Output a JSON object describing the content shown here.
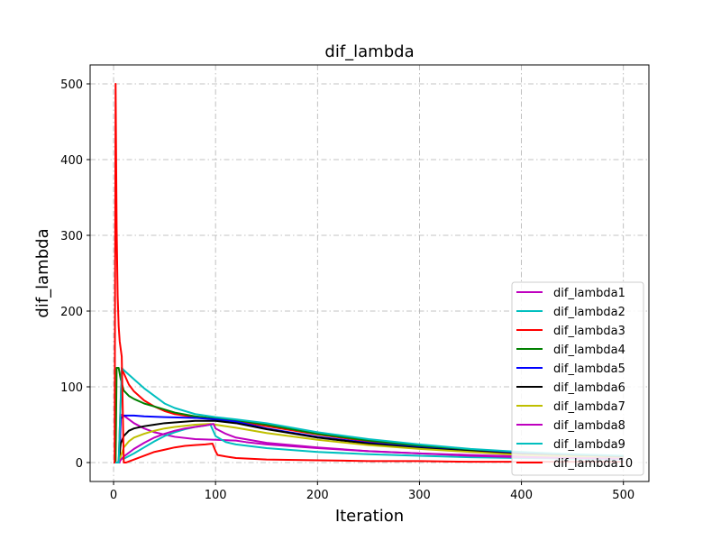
{
  "chart_data": {
    "type": "line",
    "title": "dif_lambda",
    "xlabel": "Iteration",
    "ylabel": "dif_lambda",
    "xlim": [
      -23,
      525
    ],
    "ylim": [
      -25,
      525
    ],
    "xticks": [
      0,
      100,
      200,
      300,
      400,
      500
    ],
    "yticks": [
      0,
      100,
      200,
      300,
      400,
      500
    ],
    "grid": true,
    "grid_style": "dashdot",
    "legend_position": "lower right",
    "series": [
      {
        "name": "dif_lambda1",
        "color": "#bf00bf",
        "points": [
          [
            1,
            0
          ],
          [
            2,
            0
          ],
          [
            3,
            0
          ],
          [
            4,
            0
          ],
          [
            5,
            0
          ],
          [
            6,
            0
          ],
          [
            7,
            60
          ],
          [
            8,
            63
          ],
          [
            10,
            62
          ],
          [
            20,
            52
          ],
          [
            30,
            45
          ],
          [
            40,
            40
          ],
          [
            50,
            37
          ],
          [
            60,
            34
          ],
          [
            80,
            31
          ],
          [
            100,
            30
          ],
          [
            120,
            29
          ],
          [
            130,
            27
          ],
          [
            150,
            24
          ],
          [
            200,
            19
          ],
          [
            250,
            15
          ],
          [
            300,
            12
          ],
          [
            350,
            10
          ],
          [
            400,
            8
          ],
          [
            450,
            7
          ],
          [
            500,
            6
          ]
        ]
      },
      {
        "name": "dif_lambda2",
        "color": "#00bfbf",
        "points": [
          [
            1,
            0
          ],
          [
            2,
            0
          ],
          [
            3,
            0
          ],
          [
            4,
            0
          ],
          [
            5,
            2
          ],
          [
            8,
            5
          ],
          [
            10,
            5
          ],
          [
            20,
            12
          ],
          [
            30,
            20
          ],
          [
            40,
            28
          ],
          [
            50,
            35
          ],
          [
            60,
            40
          ],
          [
            70,
            44
          ],
          [
            80,
            47
          ],
          [
            90,
            49
          ],
          [
            95,
            50
          ],
          [
            100,
            35
          ],
          [
            110,
            27
          ],
          [
            120,
            24
          ],
          [
            150,
            19
          ],
          [
            200,
            14
          ],
          [
            250,
            11
          ],
          [
            300,
            9
          ],
          [
            350,
            7
          ],
          [
            400,
            6
          ],
          [
            450,
            5
          ],
          [
            500,
            4
          ]
        ]
      },
      {
        "name": "dif_lambda3",
        "color": "#ff0000",
        "points": [
          [
            1,
            0
          ],
          [
            2,
            0
          ],
          [
            3,
            0
          ],
          [
            5,
            0
          ],
          [
            8,
            125
          ],
          [
            10,
            118
          ],
          [
            15,
            103
          ],
          [
            20,
            94
          ],
          [
            30,
            82
          ],
          [
            40,
            74
          ],
          [
            50,
            68
          ],
          [
            60,
            64
          ],
          [
            80,
            60
          ],
          [
            100,
            57
          ],
          [
            120,
            55
          ],
          [
            150,
            48
          ],
          [
            200,
            37
          ],
          [
            250,
            28
          ],
          [
            300,
            22
          ],
          [
            350,
            17
          ],
          [
            400,
            13
          ],
          [
            450,
            10
          ],
          [
            500,
            8
          ]
        ]
      },
      {
        "name": "dif_lambda4",
        "color": "#008000",
        "points": [
          [
            1,
            0
          ],
          [
            2,
            0
          ],
          [
            3,
            125
          ],
          [
            5,
            125
          ],
          [
            7,
            110
          ],
          [
            10,
            95
          ],
          [
            15,
            88
          ],
          [
            20,
            84
          ],
          [
            30,
            78
          ],
          [
            40,
            74
          ],
          [
            50,
            70
          ],
          [
            60,
            66
          ],
          [
            80,
            61
          ],
          [
            100,
            58
          ],
          [
            120,
            56
          ],
          [
            150,
            50
          ],
          [
            200,
            38
          ],
          [
            250,
            29
          ],
          [
            300,
            22
          ],
          [
            350,
            17
          ],
          [
            400,
            13
          ],
          [
            450,
            10
          ],
          [
            500,
            8
          ]
        ]
      },
      {
        "name": "dif_lambda5",
        "color": "#0000ff",
        "points": [
          [
            1,
            0
          ],
          [
            2,
            0
          ],
          [
            3,
            0
          ],
          [
            5,
            0
          ],
          [
            7,
            58
          ],
          [
            10,
            62
          ],
          [
            20,
            62
          ],
          [
            30,
            61
          ],
          [
            50,
            60
          ],
          [
            80,
            59
          ],
          [
            100,
            57
          ],
          [
            120,
            54
          ],
          [
            150,
            45
          ],
          [
            200,
            34
          ],
          [
            250,
            26
          ],
          [
            300,
            20
          ],
          [
            350,
            15
          ],
          [
            400,
            12
          ],
          [
            450,
            9
          ],
          [
            500,
            7
          ]
        ]
      },
      {
        "name": "dif_lambda6",
        "color": "#000000",
        "points": [
          [
            1,
            0
          ],
          [
            2,
            0
          ],
          [
            3,
            0
          ],
          [
            5,
            0
          ],
          [
            7,
            25
          ],
          [
            10,
            35
          ],
          [
            15,
            42
          ],
          [
            20,
            45
          ],
          [
            30,
            48
          ],
          [
            40,
            50
          ],
          [
            50,
            52
          ],
          [
            60,
            53
          ],
          [
            80,
            55
          ],
          [
            100,
            55
          ],
          [
            120,
            52
          ],
          [
            150,
            44
          ],
          [
            200,
            33
          ],
          [
            250,
            25
          ],
          [
            300,
            19
          ],
          [
            350,
            15
          ],
          [
            400,
            11
          ],
          [
            450,
            9
          ],
          [
            500,
            7
          ]
        ]
      },
      {
        "name": "dif_lambda7",
        "color": "#bfbf00",
        "points": [
          [
            1,
            0
          ],
          [
            2,
            0
          ],
          [
            3,
            0
          ],
          [
            5,
            0
          ],
          [
            8,
            12
          ],
          [
            10,
            20
          ],
          [
            15,
            28
          ],
          [
            20,
            33
          ],
          [
            30,
            38
          ],
          [
            40,
            42
          ],
          [
            50,
            45
          ],
          [
            60,
            47
          ],
          [
            80,
            50
          ],
          [
            95,
            51
          ],
          [
            100,
            50
          ],
          [
            120,
            46
          ],
          [
            150,
            39
          ],
          [
            200,
            30
          ],
          [
            250,
            23
          ],
          [
            300,
            18
          ],
          [
            350,
            14
          ],
          [
            400,
            10
          ],
          [
            450,
            8
          ],
          [
            500,
            6
          ]
        ]
      },
      {
        "name": "dif_lambda8",
        "color": "#bf00bf",
        "points": [
          [
            1,
            0
          ],
          [
            2,
            0
          ],
          [
            3,
            0
          ],
          [
            5,
            0
          ],
          [
            8,
            5
          ],
          [
            10,
            8
          ],
          [
            20,
            18
          ],
          [
            30,
            26
          ],
          [
            40,
            33
          ],
          [
            50,
            38
          ],
          [
            60,
            42
          ],
          [
            70,
            45
          ],
          [
            80,
            47
          ],
          [
            90,
            49
          ],
          [
            98,
            51
          ],
          [
            100,
            45
          ],
          [
            110,
            38
          ],
          [
            120,
            33
          ],
          [
            150,
            26
          ],
          [
            200,
            20
          ],
          [
            250,
            15
          ],
          [
            300,
            12
          ],
          [
            350,
            9
          ],
          [
            400,
            7
          ],
          [
            450,
            6
          ],
          [
            500,
            5
          ]
        ]
      },
      {
        "name": "dif_lambda9",
        "color": "#00bfbf",
        "points": [
          [
            1,
            0
          ],
          [
            2,
            0
          ],
          [
            3,
            0
          ],
          [
            5,
            0
          ],
          [
            8,
            125
          ],
          [
            10,
            122
          ],
          [
            20,
            110
          ],
          [
            30,
            98
          ],
          [
            40,
            88
          ],
          [
            50,
            78
          ],
          [
            60,
            72
          ],
          [
            80,
            64
          ],
          [
            100,
            60
          ],
          [
            120,
            57
          ],
          [
            150,
            52
          ],
          [
            200,
            40
          ],
          [
            250,
            31
          ],
          [
            300,
            24
          ],
          [
            350,
            18
          ],
          [
            400,
            14
          ],
          [
            450,
            11
          ],
          [
            500,
            9
          ]
        ]
      },
      {
        "name": "dif_lambda10",
        "color": "#ff0000",
        "points": [
          [
            0,
            0
          ],
          [
            1,
            0
          ],
          [
            2,
            500
          ],
          [
            3,
            310
          ],
          [
            4,
            220
          ],
          [
            5,
            180
          ],
          [
            6,
            160
          ],
          [
            8,
            140
          ],
          [
            10,
            0
          ],
          [
            12,
            0
          ],
          [
            20,
            4
          ],
          [
            30,
            9
          ],
          [
            40,
            14
          ],
          [
            50,
            17
          ],
          [
            60,
            20
          ],
          [
            70,
            22
          ],
          [
            80,
            23
          ],
          [
            90,
            24
          ],
          [
            97,
            25
          ],
          [
            100,
            15
          ],
          [
            102,
            10
          ],
          [
            110,
            8
          ],
          [
            120,
            6
          ],
          [
            150,
            4
          ],
          [
            200,
            3
          ],
          [
            250,
            2
          ],
          [
            300,
            2
          ],
          [
            350,
            1
          ],
          [
            400,
            1
          ],
          [
            450,
            1
          ],
          [
            500,
            1
          ]
        ]
      }
    ]
  }
}
